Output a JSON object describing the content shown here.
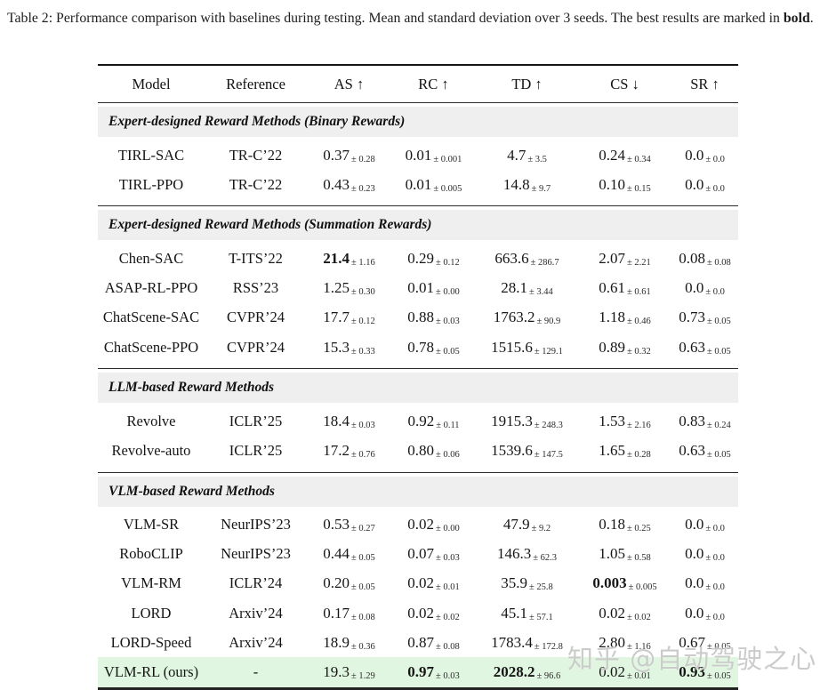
{
  "caption": {
    "prefix": "Table 2: Performance comparison with baselines during testing. Mean and standard deviation over 3 seeds. The best results are marked in ",
    "bold_word": "bold",
    "suffix": "."
  },
  "watermark": "知乎 @自动驾驶之心",
  "colors": {
    "section_band_bg": "#efefef",
    "highlight_row_bg": "#e1f6e1",
    "rule_color": "#222222"
  },
  "table": {
    "columns": [
      "Model",
      "Reference",
      "AS ↑",
      "RC ↑",
      "TD ↑",
      "CS ↓",
      "SR ↑"
    ],
    "sections": [
      {
        "title": "Expert-designed Reward Methods (Binary Rewards)",
        "rule_above": false,
        "rows": [
          {
            "model": "TIRL-SAC",
            "reference": "TR-C’22",
            "values": [
              {
                "v": "0.37",
                "sd": "0.28"
              },
              {
                "v": "0.01",
                "sd": "0.001"
              },
              {
                "v": "4.7",
                "sd": "3.5"
              },
              {
                "v": "0.24",
                "sd": "0.34"
              },
              {
                "v": "0.0",
                "sd": "0.0"
              }
            ]
          },
          {
            "model": "TIRL-PPO",
            "reference": "TR-C’22",
            "values": [
              {
                "v": "0.43",
                "sd": "0.23"
              },
              {
                "v": "0.01",
                "sd": "0.005"
              },
              {
                "v": "14.8",
                "sd": "9.7"
              },
              {
                "v": "0.10",
                "sd": "0.15"
              },
              {
                "v": "0.0",
                "sd": "0.0"
              }
            ]
          }
        ]
      },
      {
        "title": "Expert-designed Reward Methods (Summation Rewards)",
        "rule_above": true,
        "rows": [
          {
            "model": "Chen-SAC",
            "reference": "T-ITS’22",
            "values": [
              {
                "v": "21.4",
                "sd": "1.16",
                "bold": true
              },
              {
                "v": "0.29",
                "sd": "0.12"
              },
              {
                "v": "663.6",
                "sd": "286.7"
              },
              {
                "v": "2.07",
                "sd": "2.21"
              },
              {
                "v": "0.08",
                "sd": "0.08"
              }
            ]
          },
          {
            "model": "ASAP-RL-PPO",
            "reference": "RSS’23",
            "values": [
              {
                "v": "1.25",
                "sd": "0.30"
              },
              {
                "v": "0.01",
                "sd": "0.00"
              },
              {
                "v": "28.1",
                "sd": "3.44"
              },
              {
                "v": "0.61",
                "sd": "0.61"
              },
              {
                "v": "0.0",
                "sd": "0.0"
              }
            ]
          },
          {
            "model": "ChatScene-SAC",
            "reference": "CVPR’24",
            "values": [
              {
                "v": "17.7",
                "sd": "0.12"
              },
              {
                "v": "0.88",
                "sd": "0.03"
              },
              {
                "v": "1763.2",
                "sd": "90.9"
              },
              {
                "v": "1.18",
                "sd": "0.46"
              },
              {
                "v": "0.73",
                "sd": "0.05"
              }
            ]
          },
          {
            "model": "ChatScene-PPO",
            "reference": "CVPR’24",
            "values": [
              {
                "v": "15.3",
                "sd": "0.33"
              },
              {
                "v": "0.78",
                "sd": "0.05"
              },
              {
                "v": "1515.6",
                "sd": "129.1"
              },
              {
                "v": "0.89",
                "sd": "0.32"
              },
              {
                "v": "0.63",
                "sd": "0.05"
              }
            ]
          }
        ]
      },
      {
        "title": "LLM-based Reward Methods",
        "rule_above": true,
        "rows": [
          {
            "model": "Revolve",
            "reference": "ICLR’25",
            "values": [
              {
                "v": "18.4",
                "sd": "0.03"
              },
              {
                "v": "0.92",
                "sd": "0.11"
              },
              {
                "v": "1915.3",
                "sd": "248.3"
              },
              {
                "v": "1.53",
                "sd": "2.16"
              },
              {
                "v": "0.83",
                "sd": "0.24"
              }
            ]
          },
          {
            "model": "Revolve-auto",
            "reference": "ICLR’25",
            "values": [
              {
                "v": "17.2",
                "sd": "0.76"
              },
              {
                "v": "0.80",
                "sd": "0.06"
              },
              {
                "v": "1539.6",
                "sd": "147.5"
              },
              {
                "v": "1.65",
                "sd": "0.28"
              },
              {
                "v": "0.63",
                "sd": "0.05"
              }
            ]
          }
        ]
      },
      {
        "title": "VLM-based Reward Methods",
        "rule_above": true,
        "rows": [
          {
            "model": "VLM-SR",
            "reference": "NeurIPS’23",
            "values": [
              {
                "v": "0.53",
                "sd": "0.27"
              },
              {
                "v": "0.02",
                "sd": "0.00"
              },
              {
                "v": "47.9",
                "sd": "9.2"
              },
              {
                "v": "0.18",
                "sd": "0.25"
              },
              {
                "v": "0.0",
                "sd": "0.0"
              }
            ]
          },
          {
            "model": "RoboCLIP",
            "reference": "NeurIPS’23",
            "values": [
              {
                "v": "0.44",
                "sd": "0.05"
              },
              {
                "v": "0.07",
                "sd": "0.03"
              },
              {
                "v": "146.3",
                "sd": "62.3"
              },
              {
                "v": "1.05",
                "sd": "0.58"
              },
              {
                "v": "0.0",
                "sd": "0.0"
              }
            ]
          },
          {
            "model": "VLM-RM",
            "reference": "ICLR’24",
            "values": [
              {
                "v": "0.20",
                "sd": "0.05"
              },
              {
                "v": "0.02",
                "sd": "0.01"
              },
              {
                "v": "35.9",
                "sd": "25.8"
              },
              {
                "v": "0.003",
                "sd": "0.005",
                "bold": true
              },
              {
                "v": "0.0",
                "sd": "0.0"
              }
            ]
          },
          {
            "model": "LORD",
            "reference": "Arxiv’24",
            "values": [
              {
                "v": "0.17",
                "sd": "0.08"
              },
              {
                "v": "0.02",
                "sd": "0.02"
              },
              {
                "v": "45.1",
                "sd": "57.1"
              },
              {
                "v": "0.02",
                "sd": "0.02"
              },
              {
                "v": "0.0",
                "sd": "0.0"
              }
            ]
          },
          {
            "model": "LORD-Speed",
            "reference": "Arxiv’24",
            "values": [
              {
                "v": "18.9",
                "sd": "0.36"
              },
              {
                "v": "0.87",
                "sd": "0.08"
              },
              {
                "v": "1783.4",
                "sd": "172.8"
              },
              {
                "v": "2.80",
                "sd": "1.16"
              },
              {
                "v": "0.67",
                "sd": "0.05"
              }
            ]
          },
          {
            "model": "VLM-RL (ours)",
            "reference": "-",
            "highlight": true,
            "values": [
              {
                "v": "19.3",
                "sd": "1.29"
              },
              {
                "v": "0.97",
                "sd": "0.03",
                "bold": true
              },
              {
                "v": "2028.2",
                "sd": "96.6",
                "bold": true
              },
              {
                "v": "0.02",
                "sd": "0.01"
              },
              {
                "v": "0.93",
                "sd": "0.05",
                "bold": true
              }
            ]
          }
        ]
      }
    ]
  }
}
